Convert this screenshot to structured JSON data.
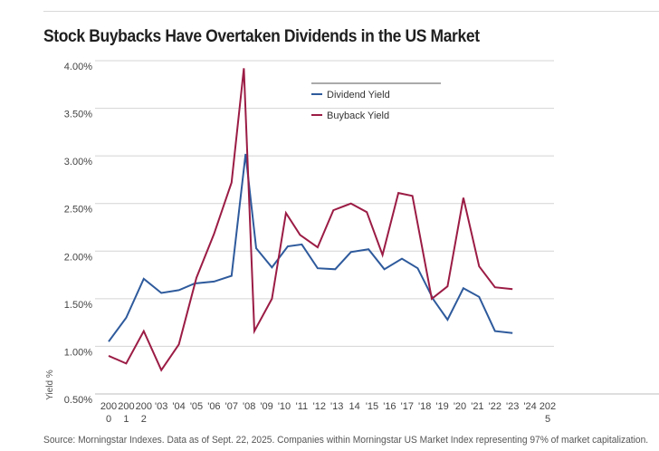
{
  "title": "Stock Buybacks Have Overtaken Dividends in the US Market",
  "source": "Source: Morningstar Indexes. Data as of Sept. 22, 2025. Companies within Morningstar US Market Index representing 97% of market capitalization.",
  "chart_data": {
    "type": "line",
    "title": "Stock Buybacks Have Overtaken Dividends in the US Market",
    "xlabel": "",
    "ylabel": "Yield %",
    "ylim": [
      0.5,
      4.0
    ],
    "yticks": [
      "0.50%",
      "1.00%",
      "1.50%",
      "2.00%",
      "2.50%",
      "3.00%",
      "3.50%",
      "4.00%"
    ],
    "ytick_values": [
      0.5,
      1.0,
      1.5,
      2.0,
      2.5,
      3.0,
      3.5,
      4.0
    ],
    "categories": [
      [
        "200",
        "0"
      ],
      [
        "200",
        "1"
      ],
      [
        "200",
        "2"
      ],
      [
        "'03"
      ],
      [
        "'04"
      ],
      [
        "'05"
      ],
      [
        "'06"
      ],
      [
        "'07"
      ],
      [
        "'08"
      ],
      [
        "'09"
      ],
      [
        "'10"
      ],
      [
        "'11"
      ],
      [
        "'12"
      ],
      [
        "'13"
      ],
      [
        "14"
      ],
      [
        "'15"
      ],
      [
        "'16"
      ],
      [
        "'17"
      ],
      [
        "'18"
      ],
      [
        "'19"
      ],
      [
        "'20"
      ],
      [
        "'21"
      ],
      [
        "'22"
      ],
      [
        "'23"
      ],
      [
        "'24"
      ],
      [
        "202",
        "5"
      ]
    ],
    "x_index": [
      0,
      1,
      2,
      3,
      4,
      5,
      6,
      7,
      8,
      9,
      10,
      11,
      12,
      13,
      14,
      15,
      16,
      17,
      18,
      19,
      20,
      21,
      22,
      23,
      24,
      25
    ],
    "series": [
      {
        "name": "Dividend Yield",
        "color": "#2e5a9c",
        "x": [
          0,
          1,
          2,
          3,
          4,
          4.9,
          6,
          7,
          7.8,
          8.4,
          9.3,
          10.2,
          11,
          11.9,
          12.9,
          13.8,
          14.8,
          15.7,
          16.7,
          17.6,
          18.5,
          19.3,
          20.2,
          21.1,
          22,
          23
        ],
        "values": [
          1.05,
          1.3,
          1.71,
          1.56,
          1.59,
          1.66,
          1.68,
          1.74,
          3.02,
          2.03,
          1.83,
          2.05,
          2.07,
          1.82,
          1.81,
          1.99,
          2.02,
          1.81,
          1.92,
          1.82,
          1.49,
          1.28,
          1.61,
          1.52,
          1.16,
          1.14
        ]
      },
      {
        "name": "Buyback Yield",
        "color": "#9b1c45",
        "x": [
          0,
          1,
          2,
          3,
          4,
          5,
          6,
          7,
          7.7,
          8.3,
          9.3,
          10.1,
          10.9,
          11.9,
          12.8,
          13.8,
          14.7,
          15.6,
          16.5,
          17.3,
          18.4,
          19.3,
          20.2,
          21.1,
          22,
          23
        ],
        "values": [
          0.9,
          0.82,
          1.16,
          0.75,
          1.02,
          1.72,
          2.18,
          2.72,
          3.92,
          1.16,
          1.5,
          2.4,
          2.17,
          2.04,
          2.43,
          2.5,
          2.41,
          1.96,
          2.61,
          2.58,
          1.5,
          1.63,
          2.56,
          1.84,
          1.62,
          1.6
        ]
      }
    ],
    "legend": "top-center",
    "grid": "horizontal"
  }
}
